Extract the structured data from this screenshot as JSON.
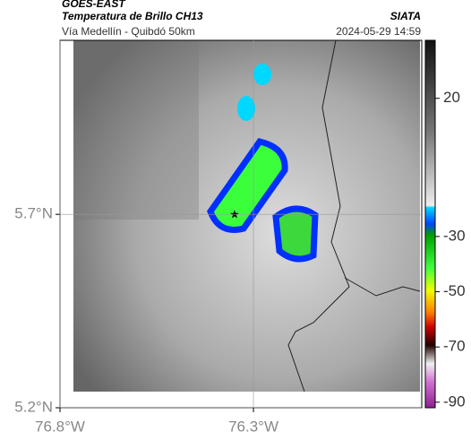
{
  "header": {
    "title": "GOES-EAST",
    "subtitle": "Temperatura de Brillo CH13",
    "source": "SIATA",
    "route": "Vía Medellín - Quibdó 50km",
    "timestamp": "2024-05-29 14:59"
  },
  "map": {
    "ylim": [
      5.2,
      6.15
    ],
    "xlim": [
      -76.8,
      -75.865
    ],
    "yticks": [
      {
        "value": 5.7,
        "label": "5.7°N"
      },
      {
        "value": 5.2,
        "label": "5.2°N"
      }
    ],
    "xticks": [
      {
        "value": -76.8,
        "label": "76.8°W"
      },
      {
        "value": -76.3,
        "label": "76.3°W"
      }
    ]
  },
  "colorbar": {
    "clim": [
      -92,
      41
    ],
    "ticks": [
      20,
      -30,
      -50,
      -70,
      -90
    ]
  }
}
